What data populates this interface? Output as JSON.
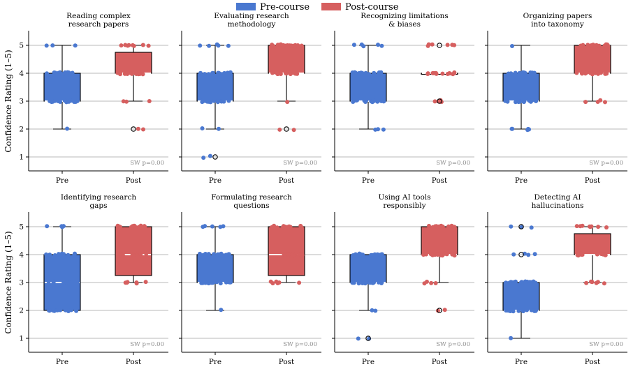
{
  "legend": {
    "pre": {
      "label": "Pre-course",
      "color": "#4a78d0"
    },
    "post": {
      "label": "Post-course",
      "color": "#d65f5f"
    }
  },
  "ylabel": "Confidence Rating (1–5)",
  "sw_label": "SW p=0.00",
  "chart_data": {
    "type": "box",
    "ylim": [
      0.5,
      5.5
    ],
    "yticks": [
      1,
      2,
      3,
      4,
      5
    ],
    "categories": [
      "Pre",
      "Post"
    ],
    "grid": "horizontal",
    "legend_position": "top-center",
    "panels": [
      {
        "title": [
          "Reading complex",
          "research papers"
        ],
        "pre": {
          "q1": 3,
          "median": 3,
          "q3": 4,
          "whisker_low": 2,
          "whisker_high": 5,
          "outliers": [],
          "points": [
            [
              2,
              1
            ],
            [
              3,
              20
            ],
            [
              4,
              20
            ],
            [
              5,
              3
            ]
          ]
        },
        "post": {
          "q1": 4,
          "median": 4,
          "q3": 4.75,
          "whisker_low": 3,
          "whisker_high": 5,
          "outliers": [
            2
          ],
          "points": [
            [
              2,
              2
            ],
            [
              3,
              3
            ],
            [
              4,
              20
            ],
            [
              5,
              8
            ]
          ]
        }
      },
      {
        "title": [
          "Evaluating research",
          "methodology"
        ],
        "pre": {
          "q1": 3,
          "median": 3,
          "q3": 4,
          "whisker_low": 2,
          "whisker_high": 5,
          "outliers": [
            1
          ],
          "points": [
            [
              1,
              2
            ],
            [
              2,
              2
            ],
            [
              3,
              20
            ],
            [
              4,
              14
            ],
            [
              5,
              5
            ]
          ]
        },
        "post": {
          "q1": 4,
          "median": 4,
          "q3": 5,
          "whisker_low": 3,
          "whisker_high": 5,
          "outliers": [
            2
          ],
          "points": [
            [
              2,
              2
            ],
            [
              3,
              1
            ],
            [
              4,
              18
            ],
            [
              5,
              18
            ]
          ]
        }
      },
      {
        "title": [
          "Recognizing limitations",
          "& biases"
        ],
        "pre": {
          "q1": 3,
          "median": 3,
          "q3": 4,
          "whisker_low": 2,
          "whisker_high": 5,
          "outliers": [],
          "points": [
            [
              2,
              3
            ],
            [
              3,
              20
            ],
            [
              4,
              18
            ],
            [
              5,
              5
            ]
          ]
        },
        "post": {
          "q1": 4,
          "median": 4,
          "q3": 4,
          "whisker_low": 4,
          "whisker_high": 4,
          "outliers": [
            3,
            5
          ],
          "points": [
            [
              3,
              5
            ],
            [
              4,
              14
            ],
            [
              5,
              6
            ]
          ]
        }
      },
      {
        "title": [
          "Organizing papers",
          "into taxonomy"
        ],
        "pre": {
          "q1": 3,
          "median": 3,
          "q3": 4,
          "whisker_low": 2,
          "whisker_high": 5,
          "outliers": [],
          "points": [
            [
              2,
              5
            ],
            [
              3,
              22
            ],
            [
              4,
              16
            ],
            [
              5,
              1
            ]
          ]
        },
        "post": {
          "q1": 4,
          "median": 4,
          "q3": 5,
          "whisker_low": 3,
          "whisker_high": 5,
          "outliers": [],
          "points": [
            [
              3,
              4
            ],
            [
              4,
              18
            ],
            [
              5,
              18
            ]
          ]
        }
      },
      {
        "title": [
          "Identifying research",
          "gaps"
        ],
        "pre": {
          "q1": 2,
          "median": 3,
          "q3": 4,
          "whisker_low": 2,
          "whisker_high": 5,
          "outliers": [],
          "points": [
            [
              2,
              14
            ],
            [
              3,
              18
            ],
            [
              4,
              12
            ],
            [
              5,
              4
            ]
          ]
        },
        "post": {
          "q1": 3.25,
          "median": 4,
          "q3": 5,
          "whisker_low": 3,
          "whisker_high": 5,
          "outliers": [],
          "points": [
            [
              3,
              6
            ],
            [
              4,
              14
            ],
            [
              5,
              14
            ]
          ]
        }
      },
      {
        "title": [
          "Formulating research",
          "questions"
        ],
        "pre": {
          "q1": 3,
          "median": 3,
          "q3": 4,
          "whisker_low": 2,
          "whisker_high": 5,
          "outliers": [],
          "points": [
            [
              2,
              1
            ],
            [
              3,
              22
            ],
            [
              4,
              18
            ],
            [
              5,
              5
            ]
          ]
        },
        "post": {
          "q1": 3.25,
          "median": 4,
          "q3": 5,
          "whisker_low": 3,
          "whisker_high": 5,
          "outliers": [],
          "points": [
            [
              3,
              6
            ],
            [
              4,
              14
            ],
            [
              5,
              14
            ]
          ]
        }
      },
      {
        "title": [
          "Using AI tools",
          "responsibly"
        ],
        "pre": {
          "q1": 3,
          "median": 3,
          "q3": 4,
          "whisker_low": 2,
          "whisker_high": 4,
          "outliers": [
            1
          ],
          "points": [
            [
              1,
              2
            ],
            [
              2,
              2
            ],
            [
              3,
              22
            ],
            [
              4,
              16
            ]
          ]
        },
        "post": {
          "q1": 4,
          "median": 4,
          "q3": 5,
          "whisker_low": 3,
          "whisker_high": 5,
          "outliers": [
            2
          ],
          "points": [
            [
              2,
              2
            ],
            [
              3,
              4
            ],
            [
              4,
              18
            ],
            [
              5,
              16
            ]
          ]
        }
      },
      {
        "title": [
          "Detecting AI",
          "hallucinations"
        ],
        "pre": {
          "q1": 2,
          "median": 2,
          "q3": 3,
          "whisker_low": 1,
          "whisker_high": 3,
          "outliers": [
            4,
            5
          ],
          "points": [
            [
              1,
              1
            ],
            [
              2,
              20
            ],
            [
              3,
              20
            ],
            [
              4,
              4
            ],
            [
              5,
              3
            ]
          ]
        },
        "post": {
          "q1": 4,
          "median": 4,
          "q3": 4.75,
          "whisker_low": 3,
          "whisker_high": 5,
          "outliers": [],
          "points": [
            [
              3,
              6
            ],
            [
              4,
              18
            ],
            [
              5,
              8
            ]
          ]
        }
      }
    ]
  }
}
